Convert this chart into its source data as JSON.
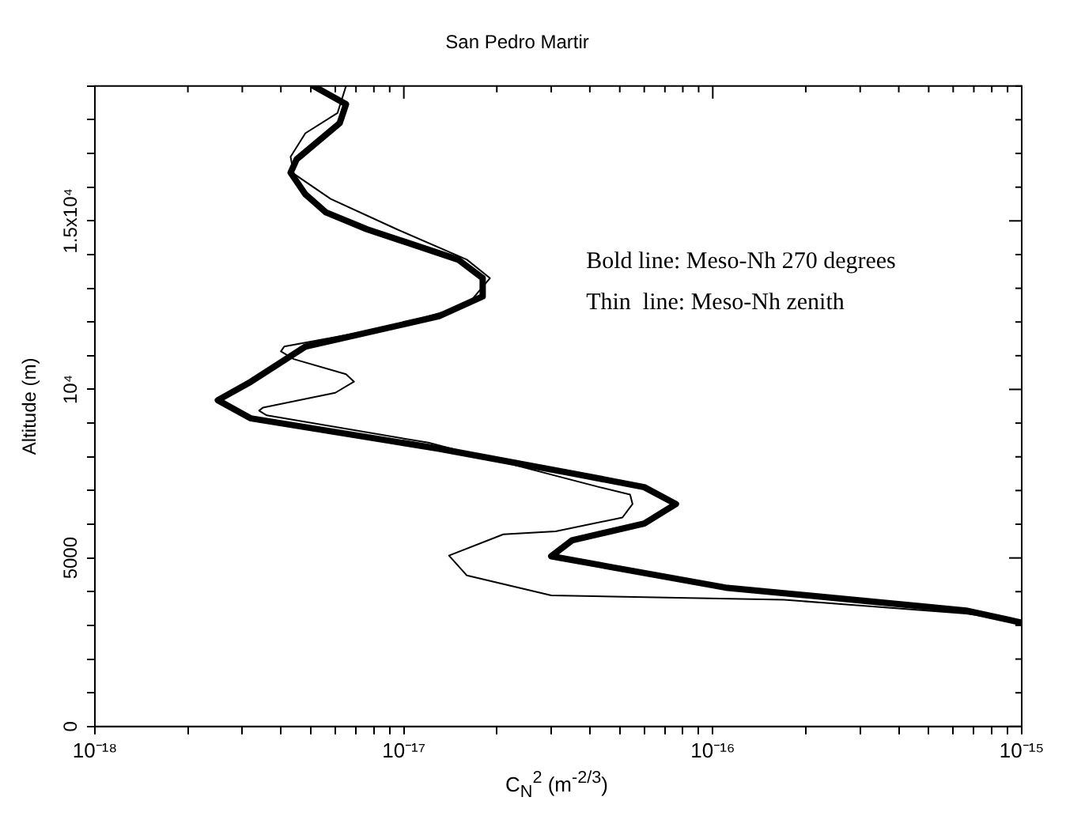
{
  "chart_data": {
    "type": "line",
    "title": "San Pedro Martir",
    "xlabel": "C$_{N}$$^{2}$ (m$^{-2/3}$)",
    "ylabel": "Altitude (m)",
    "annotations": [
      "Bold line: Meso-Nh 270 degrees",
      "Thin  line: Meso-Nh zenith"
    ],
    "log": "x",
    "grid": false,
    "legend": false,
    "marker": "none",
    "line_style": "solid",
    "xlim": [
      1e-18,
      1e-15
    ],
    "ylim": [
      0,
      19000
    ],
    "xticks": [
      {
        "value": 1e-18,
        "label": "10⁻¹⁸"
      },
      {
        "value": 2e-18,
        "label": null
      },
      {
        "value": 3e-18,
        "label": null
      },
      {
        "value": 4e-18,
        "label": null
      },
      {
        "value": 5e-18,
        "label": null
      },
      {
        "value": 6e-18,
        "label": null
      },
      {
        "value": 7e-18,
        "label": null
      },
      {
        "value": 8e-18,
        "label": null
      },
      {
        "value": 9e-18,
        "label": null
      },
      {
        "value": 1e-17,
        "label": "10⁻¹⁷"
      },
      {
        "value": 2e-17,
        "label": null
      },
      {
        "value": 3e-17,
        "label": null
      },
      {
        "value": 4e-17,
        "label": null
      },
      {
        "value": 5e-17,
        "label": null
      },
      {
        "value": 6e-17,
        "label": null
      },
      {
        "value": 7e-17,
        "label": null
      },
      {
        "value": 8e-17,
        "label": null
      },
      {
        "value": 9e-17,
        "label": null
      },
      {
        "value": 1e-16,
        "label": "10⁻¹⁶"
      },
      {
        "value": 2e-16,
        "label": null
      },
      {
        "value": 3e-16,
        "label": null
      },
      {
        "value": 4e-16,
        "label": null
      },
      {
        "value": 5e-16,
        "label": null
      },
      {
        "value": 6e-16,
        "label": null
      },
      {
        "value": 7e-16,
        "label": null
      },
      {
        "value": 8e-16,
        "label": null
      },
      {
        "value": 9e-16,
        "label": null
      },
      {
        "value": 1e-15,
        "label": "10⁻¹⁵"
      }
    ],
    "yticks": [
      0,
      {
        "value": 1000,
        "label": null
      },
      {
        "value": 2000,
        "label": null
      },
      {
        "value": 3000,
        "label": null
      },
      {
        "value": 4000,
        "label": null
      },
      5000,
      {
        "value": 6000,
        "label": null
      },
      {
        "value": 7000,
        "label": null
      },
      {
        "value": 8000,
        "label": null
      },
      {
        "value": 9000,
        "label": null
      },
      {
        "value": 10000,
        "label": "10⁴"
      },
      {
        "value": 11000,
        "label": null
      },
      {
        "value": 12000,
        "label": null
      },
      {
        "value": 13000,
        "label": null
      },
      {
        "value": 14000,
        "label": null
      },
      {
        "value": 15000,
        "label": "1.5x10⁴"
      },
      {
        "value": 16000,
        "label": null
      },
      {
        "value": 17000,
        "label": null
      },
      {
        "value": 18000,
        "label": null
      },
      {
        "value": 19000,
        "label": null
      }
    ],
    "series": [
      {
        "color": "#000000",
        "x": [
          5.1e-18,
          6.5e-18,
          6.2e-18,
          4.5e-18,
          4.3e-18,
          4.8e-18,
          5.6e-18,
          7.6e-18,
          1.5e-17,
          1.8e-17,
          1.8e-17,
          1.3e-17,
          4.8e-18,
          3.2e-18,
          2.5e-18,
          3.2e-18,
          1.3e-17,
          3.5e-17,
          6e-17,
          7.6e-17,
          6e-17,
          3.5e-17,
          3e-17,
          1.1e-16,
          6.6e-16,
          1e-15
        ],
        "values": [
          19000,
          18460,
          17900,
          16830,
          16430,
          15790,
          15250,
          14750,
          13850,
          13300,
          12760,
          12170,
          11270,
          10230,
          9680,
          9140,
          8240,
          7510,
          7100,
          6600,
          6020,
          5520,
          5050,
          4120,
          3440,
          3080
        ]
      },
      {
        "color": "#000000",
        "x": [
          6.5e-18,
          6.1e-18,
          4.8e-18,
          4.3e-18,
          4.4e-18,
          5.8e-18,
          9.5e-18,
          1.6e-17,
          1.9e-17,
          1.6e-17,
          9.1e-18,
          4.1e-18,
          4e-18,
          4.4e-18,
          6.5e-18,
          6.9e-18,
          6e-18,
          3.5e-18,
          3.4e-18,
          3.6e-18,
          1.2e-17,
          4.3e-17,
          5.4e-17,
          5.5e-17,
          5.1e-17,
          3.1e-17,
          2.1e-17,
          1.4e-17,
          1.6e-17,
          3e-17,
          1.7e-16,
          6.6e-16,
          1e-15
        ],
        "values": [
          19000,
          18200,
          17600,
          16900,
          16400,
          15650,
          14750,
          13850,
          13300,
          12490,
          11860,
          11270,
          11130,
          10900,
          10450,
          10230,
          9900,
          9460,
          9370,
          9230,
          8420,
          7100,
          6880,
          6600,
          6200,
          5790,
          5700,
          5070,
          4480,
          3890,
          3760,
          3350,
          3120
        ]
      }
    ]
  }
}
